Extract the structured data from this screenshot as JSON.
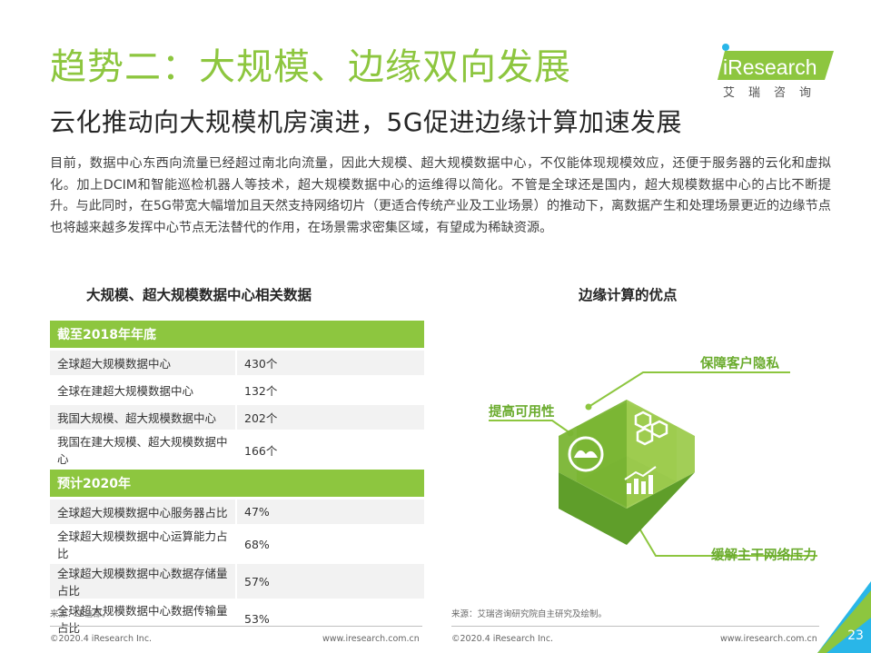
{
  "header": {
    "title": "趋势二：大规模、边缘双向发展",
    "subtitle": "云化推动向大规模机房演进，5G促进边缘计算加速发展"
  },
  "brand": {
    "name": "iResearch",
    "cn_name": "艾瑞咨询",
    "colors": {
      "green": "#8dc63f",
      "dark_green": "#5f9e2a",
      "blue": "#29b6e8"
    }
  },
  "intro": "目前，数据中心东西向流量已经超过南北向流量，因此大规模、超大规模数据中心，不仅能体现规模效应，还便于服务器的云化和虚拟化。加上DCIM和智能巡检机器人等技术，超大规模数据中心的运维得以简化。不管是全球还是国内，超大规模数据中心的占比不断提升。与此同时，在5G带宽大幅增加且天然支持网络切片（更适合传统产业及工业场景）的推动下，离数据产生和处理场景更近的边缘节点也将越来越多发挥中心节点无法替代的作用，在场景需求密集区域，有望成为稀缺资源。",
  "left_section": {
    "title": "大规模、超大规模数据中心相关数据",
    "groups": [
      {
        "header": "截至2018年年底",
        "rows": [
          {
            "label": "全球超大规模数据中心",
            "value": "430个"
          },
          {
            "label": "全球在建超大规模数据中心",
            "value": "132个"
          },
          {
            "label": "我国大规模、超大规模数据中心",
            "value": "202个"
          },
          {
            "label": "我国在建大规模、超大规模数据中心",
            "value": "166个"
          }
        ]
      },
      {
        "header": "预计2020年",
        "rows": [
          {
            "label": "全球超大规模数据中心服务器占比",
            "value": "47%"
          },
          {
            "label": "全球超大规模数据中心运算能力占比",
            "value": "68%"
          },
          {
            "label": "全球超大规模数据中心数据存储量占比",
            "value": "57%"
          },
          {
            "label": "全球超大规模数据中心数据传输量占比",
            "value": "53%"
          }
        ]
      }
    ],
    "source": "来源：工信部。"
  },
  "right_section": {
    "title": "边缘计算的优点",
    "advantages": [
      "提高可用性",
      "保障客户隐私",
      "缓解主干网络压力"
    ],
    "icons": [
      "cloud-chart-icon",
      "hexagon-cluster-icon",
      "bar-chart-icon"
    ],
    "source": "来源：艾瑞咨询研究院自主研究及绘制。"
  },
  "footer": {
    "copyright": "©2020.4 iResearch Inc.",
    "url": "www.iresearch.com.cn",
    "page": "23"
  }
}
